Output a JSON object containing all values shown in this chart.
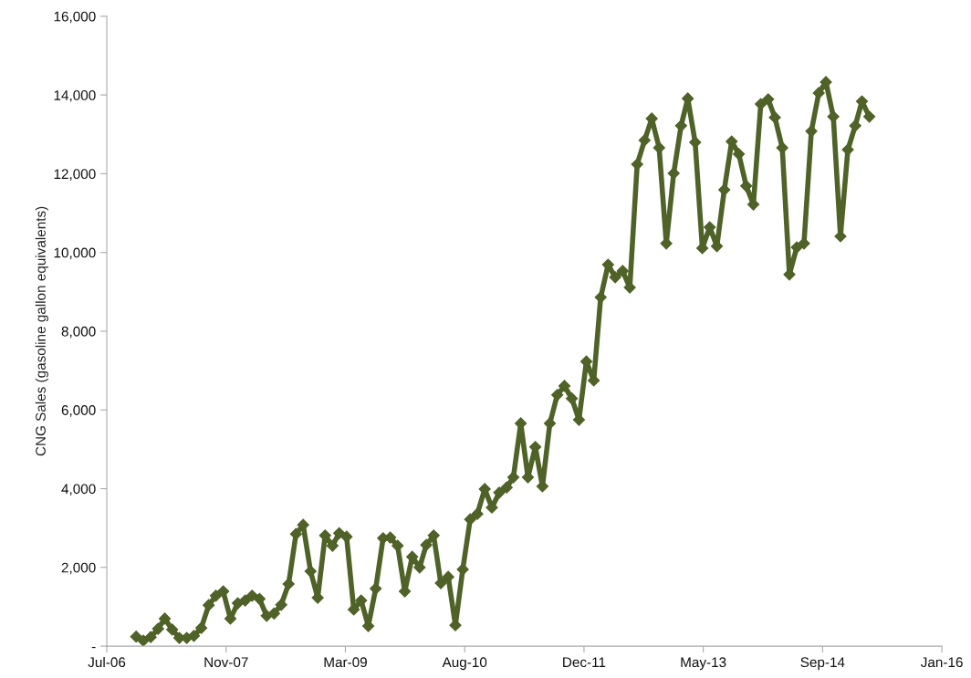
{
  "chart_data": {
    "type": "line",
    "ylabel": "CNG Sales (gasoline gallon equivalents)",
    "x": [
      "2006-11",
      "2006-12",
      "2007-01",
      "2007-02",
      "2007-03",
      "2007-04",
      "2007-05",
      "2007-06",
      "2007-07",
      "2007-08",
      "2007-09",
      "2007-10",
      "2007-11",
      "2007-12",
      "2008-01",
      "2008-02",
      "2008-03",
      "2008-04",
      "2008-05",
      "2008-06",
      "2008-07",
      "2008-08",
      "2008-09",
      "2008-10",
      "2008-11",
      "2008-12",
      "2009-01",
      "2009-02",
      "2009-03",
      "2009-04",
      "2009-05",
      "2009-06",
      "2009-07",
      "2009-08",
      "2009-09",
      "2009-10",
      "2009-11",
      "2009-12",
      "2010-01",
      "2010-02",
      "2010-03",
      "2010-04",
      "2010-05",
      "2010-06",
      "2010-07",
      "2010-08",
      "2010-09",
      "2010-10",
      "2010-11",
      "2010-12",
      "2011-01",
      "2011-02",
      "2011-03",
      "2011-04",
      "2011-05",
      "2011-06",
      "2011-07",
      "2011-08",
      "2011-09",
      "2011-10",
      "2011-11",
      "2011-12",
      "2012-01",
      "2012-02",
      "2012-03",
      "2012-04",
      "2012-05",
      "2012-06",
      "2012-07",
      "2012-08",
      "2012-09",
      "2012-10",
      "2012-11",
      "2012-12",
      "2013-01",
      "2013-02",
      "2013-03",
      "2013-04",
      "2013-05",
      "2013-06",
      "2013-07",
      "2013-08",
      "2013-09",
      "2013-10",
      "2013-11",
      "2013-12",
      "2014-01",
      "2014-02",
      "2014-03",
      "2014-04",
      "2014-05",
      "2014-06",
      "2014-07",
      "2014-08",
      "2014-09",
      "2014-10",
      "2014-11",
      "2014-12",
      "2015-01",
      "2015-02",
      "2015-03",
      "2015-04"
    ],
    "series": [
      {
        "color": "#4f6228",
        "values": [
          240,
          140,
          230,
          440,
          700,
          420,
          210,
          210,
          260,
          460,
          1040,
          1280,
          1390,
          700,
          1090,
          1160,
          1280,
          1200,
          770,
          830,
          1050,
          1580,
          2850,
          3080,
          1900,
          1230,
          2810,
          2550,
          2870,
          2780,
          930,
          1160,
          510,
          1460,
          2740,
          2760,
          2550,
          1390,
          2270,
          2000,
          2570,
          2810,
          1600,
          1760,
          530,
          1950,
          3220,
          3360,
          3990,
          3520,
          3900,
          4030,
          4290,
          5660,
          4290,
          5060,
          4060,
          5660,
          6380,
          6610,
          6290,
          5750,
          7230,
          6750,
          8860,
          9690,
          9370,
          9530,
          9110,
          12240,
          12850,
          13400,
          12660,
          10230,
          12010,
          13220,
          13910,
          12800,
          10110,
          10640,
          10160,
          11590,
          12820,
          12500,
          11690,
          11220,
          13770,
          13890,
          13430,
          12660,
          9440,
          10130,
          10230,
          13080,
          14050,
          14330,
          13450,
          10410,
          12610,
          13220,
          13840,
          13450
        ]
      }
    ],
    "xlim": [
      "2006-07-01",
      "2016-01-30"
    ],
    "xticks": [
      {
        "value": "2006-07-01",
        "label": "Jul-06"
      },
      {
        "value": "2007-11-13",
        "label": "Nov-07"
      },
      {
        "value": "2009-03-27",
        "label": "Mar-09"
      },
      {
        "value": "2010-08-09",
        "label": "Aug-10"
      },
      {
        "value": "2011-12-22",
        "label": "Dec-11"
      },
      {
        "value": "2013-05-05",
        "label": "May-13"
      },
      {
        "value": "2014-09-17",
        "label": "Sep-14"
      },
      {
        "value": "2016-01-30",
        "label": "Jan-16"
      }
    ],
    "ylim": [
      0,
      16000
    ],
    "yticks": [
      {
        "value": 0,
        "label": "-"
      },
      {
        "value": 2000,
        "label": "2,000"
      },
      {
        "value": 4000,
        "label": "4,000"
      },
      {
        "value": 6000,
        "label": "6,000"
      },
      {
        "value": 8000,
        "label": "8,000"
      },
      {
        "value": 10000,
        "label": "10,000"
      },
      {
        "value": 12000,
        "label": "12,000"
      },
      {
        "value": 14000,
        "label": "14,000"
      },
      {
        "value": 16000,
        "label": "16,000"
      }
    ],
    "marker": "diamond",
    "line_style": "solid",
    "grid": false,
    "legend": false
  }
}
